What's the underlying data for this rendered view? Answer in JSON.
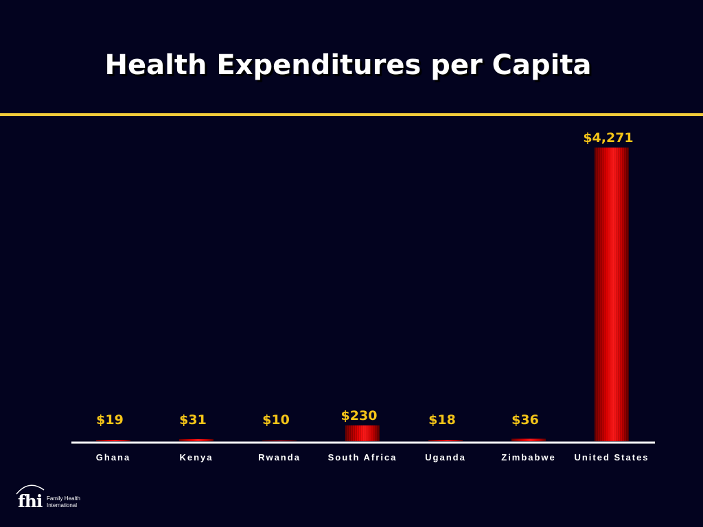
{
  "title": "Health Expenditures per Capita",
  "logo": {
    "mark": "fhi",
    "line1": "Family Health",
    "line2": "International"
  },
  "chart_data": {
    "type": "bar",
    "title": "Health Expenditures per Capita",
    "xlabel": "",
    "ylabel": "",
    "categories": [
      "Ghana",
      "Kenya",
      "Rwanda",
      "South Africa",
      "Uganda",
      "Zimbabwe",
      "United States"
    ],
    "values": [
      19,
      31,
      10,
      230,
      18,
      36,
      4271
    ],
    "data_labels": [
      "$19",
      "$31",
      "$10",
      "$230",
      "$18",
      "$36",
      "$4,271"
    ],
    "ylim": [
      0,
      4271
    ],
    "grid": false,
    "legend": "none",
    "bar_color": "#e00000",
    "label_color": "#f5c518"
  }
}
